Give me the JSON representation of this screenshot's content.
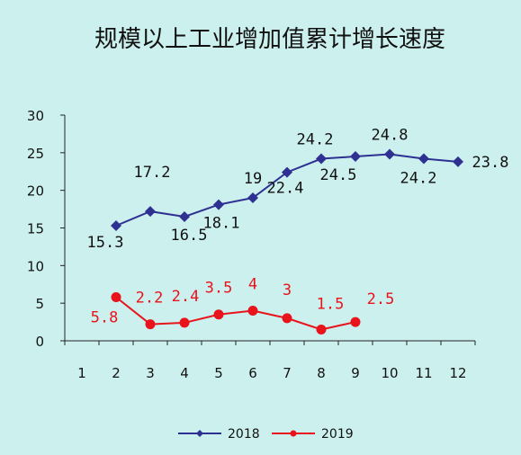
{
  "chart_data": {
    "type": "line",
    "title": "规模以上工业增加值累计增长速度",
    "x": [
      1,
      2,
      3,
      4,
      5,
      6,
      7,
      8,
      9,
      10,
      11,
      12
    ],
    "x_tick_labels": [
      "1",
      "2",
      "3",
      "4",
      "5",
      "6",
      "7",
      "8",
      "9",
      "10",
      "11",
      "12"
    ],
    "y_tick_labels": [
      "0",
      "5",
      "10",
      "15",
      "20",
      "25",
      "30"
    ],
    "ylim": [
      0,
      30
    ],
    "grid": false,
    "legend_position": "bottom",
    "series": [
      {
        "name": "2018",
        "color": "#2e3192",
        "marker": "diamond",
        "x": [
          2,
          3,
          4,
          5,
          6,
          7,
          8,
          9,
          10,
          11,
          12
        ],
        "values": [
          15.3,
          17.2,
          16.5,
          18.1,
          19,
          22.4,
          24.2,
          24.5,
          24.8,
          24.2,
          23.8
        ],
        "value_labels": [
          "15.3",
          "17.2",
          "16.5",
          "18.1",
          "19",
          "22.4",
          "24.2",
          "24.5",
          "24.8",
          "24.2",
          "23.8"
        ]
      },
      {
        "name": "2019",
        "color": "#e8131b",
        "marker": "circle",
        "x": [
          2,
          3,
          4,
          5,
          6,
          7,
          8,
          9
        ],
        "values": [
          5.8,
          2.2,
          2.4,
          3.5,
          4,
          3,
          1.5,
          2.5
        ],
        "value_labels": [
          "5.8",
          "2.2",
          "2.4",
          "3.5",
          "4",
          "3",
          "1.5",
          "2.5"
        ]
      }
    ]
  }
}
